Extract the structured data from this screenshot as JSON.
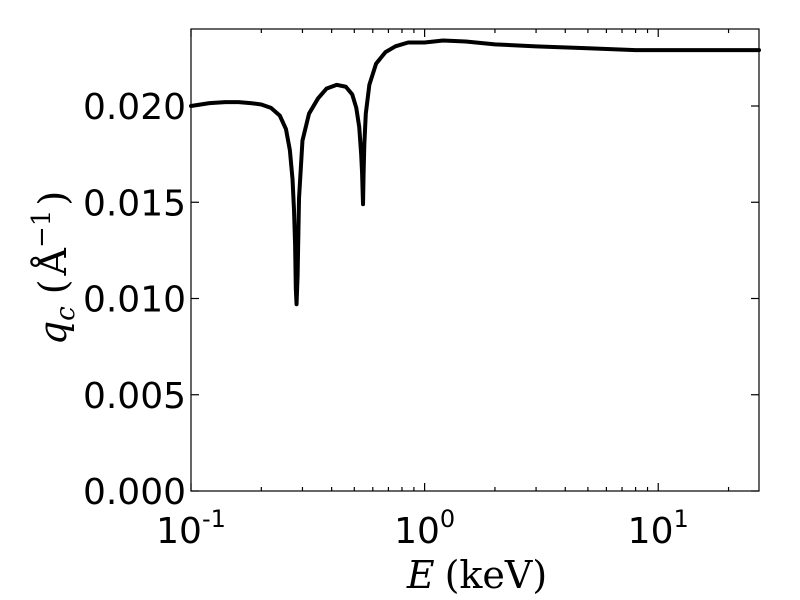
{
  "chart_data": {
    "type": "line",
    "xscale": "log",
    "xlim": [
      0.1,
      27
    ],
    "ylim": [
      0.0,
      0.024
    ],
    "x_ticks": [
      {
        "value": 0.1,
        "base": "10",
        "exp": "-1"
      },
      {
        "value": 1,
        "base": "10",
        "exp": "0"
      },
      {
        "value": 10,
        "base": "10",
        "exp": "1"
      }
    ],
    "y_ticks": [
      {
        "value": 0.0,
        "label": "0.000"
      },
      {
        "value": 0.005,
        "label": "0.005"
      },
      {
        "value": 0.01,
        "label": "0.010"
      },
      {
        "value": 0.015,
        "label": "0.015"
      },
      {
        "value": 0.02,
        "label": "0.020"
      }
    ],
    "xlabel": {
      "symbol": "E",
      "unit": "(keV)"
    },
    "ylabel": {
      "symbol": "q",
      "subscript": "c",
      "unit_open": "(",
      "unit": "Å",
      "unit_exp": "−1",
      "unit_close": ")"
    },
    "grid": false,
    "line_color": "#000000",
    "series": [
      {
        "x": [
          0.1,
          0.12,
          0.14,
          0.16,
          0.18,
          0.2,
          0.22,
          0.24,
          0.255,
          0.265,
          0.272,
          0.276,
          0.279,
          0.281,
          0.283,
          0.286,
          0.29,
          0.3,
          0.32,
          0.35,
          0.38,
          0.42,
          0.46,
          0.49,
          0.51,
          0.525,
          0.535,
          0.54,
          0.543,
          0.545,
          0.548,
          0.552,
          0.56,
          0.58,
          0.62,
          0.68,
          0.75,
          0.85,
          1.0,
          1.2,
          1.5,
          2.0,
          3.0,
          5.0,
          8.0,
          12.0,
          18.0,
          27.0
        ],
        "y": [
          0.02,
          0.02015,
          0.0202,
          0.0202,
          0.02015,
          0.02008,
          0.0199,
          0.0195,
          0.0188,
          0.0177,
          0.0162,
          0.0146,
          0.0128,
          0.0105,
          0.0097,
          0.0112,
          0.0152,
          0.0182,
          0.0196,
          0.0204,
          0.0209,
          0.0211,
          0.021,
          0.0206,
          0.0199,
          0.0189,
          0.0175,
          0.0165,
          0.0155,
          0.0149,
          0.0165,
          0.018,
          0.0196,
          0.0211,
          0.0222,
          0.0228,
          0.0231,
          0.0233,
          0.0233,
          0.0234,
          0.02335,
          0.0232,
          0.0231,
          0.023,
          0.0229,
          0.0229,
          0.0229,
          0.0229
        ]
      }
    ]
  }
}
